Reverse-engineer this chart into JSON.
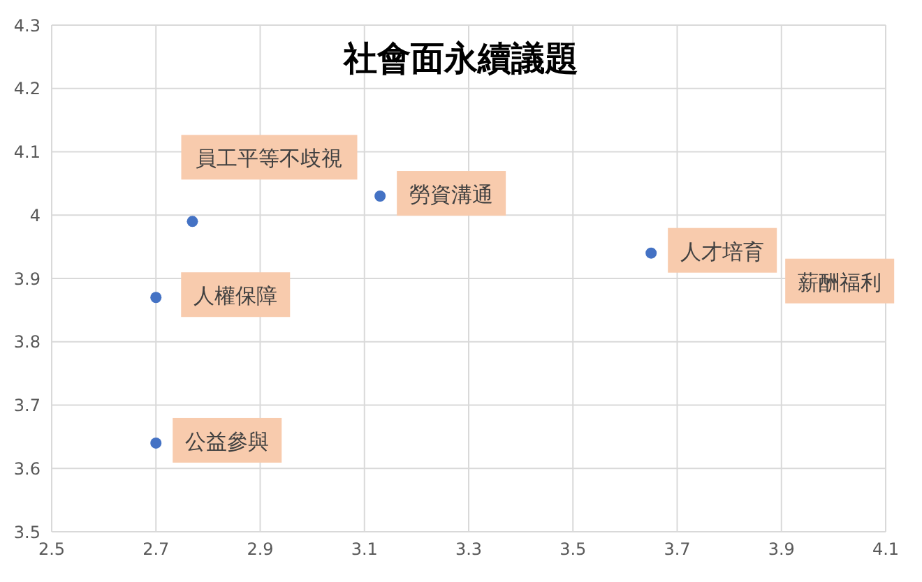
{
  "chart_data": {
    "type": "scatter",
    "title": "社會面永續議題",
    "series": [
      {
        "color": "#4472c4",
        "x": [
          2.7,
          2.7,
          2.77,
          3.13,
          3.65
        ],
        "values": [
          3.87,
          3.64,
          3.99,
          4.03,
          3.94
        ]
      }
    ],
    "annotations": [
      {
        "text": "人權保障",
        "x": 2.7,
        "y": 3.87
      },
      {
        "text": "公益參與",
        "x": 2.7,
        "y": 3.64
      },
      {
        "text": "員工平等不歧視",
        "x": 2.77,
        "y": 3.99
      },
      {
        "text": "勞資溝通",
        "x": 3.13,
        "y": 4.03
      },
      {
        "text": "人才培育",
        "x": 3.65,
        "y": 3.94
      },
      "薪酬福利"
    ],
    "xlim": [
      2.5,
      4.1
    ],
    "xticks": [
      2.5,
      2.7,
      2.9,
      3.1,
      3.3,
      3.5,
      3.7,
      3.9,
      4.1
    ],
    "ylim": [
      3.5,
      4.3
    ],
    "yticks": [
      3.5,
      3.6,
      3.7,
      3.8,
      3.9,
      4,
      4.1,
      4.2,
      4.3
    ],
    "grid": true,
    "marker": "circle",
    "legend": false
  }
}
